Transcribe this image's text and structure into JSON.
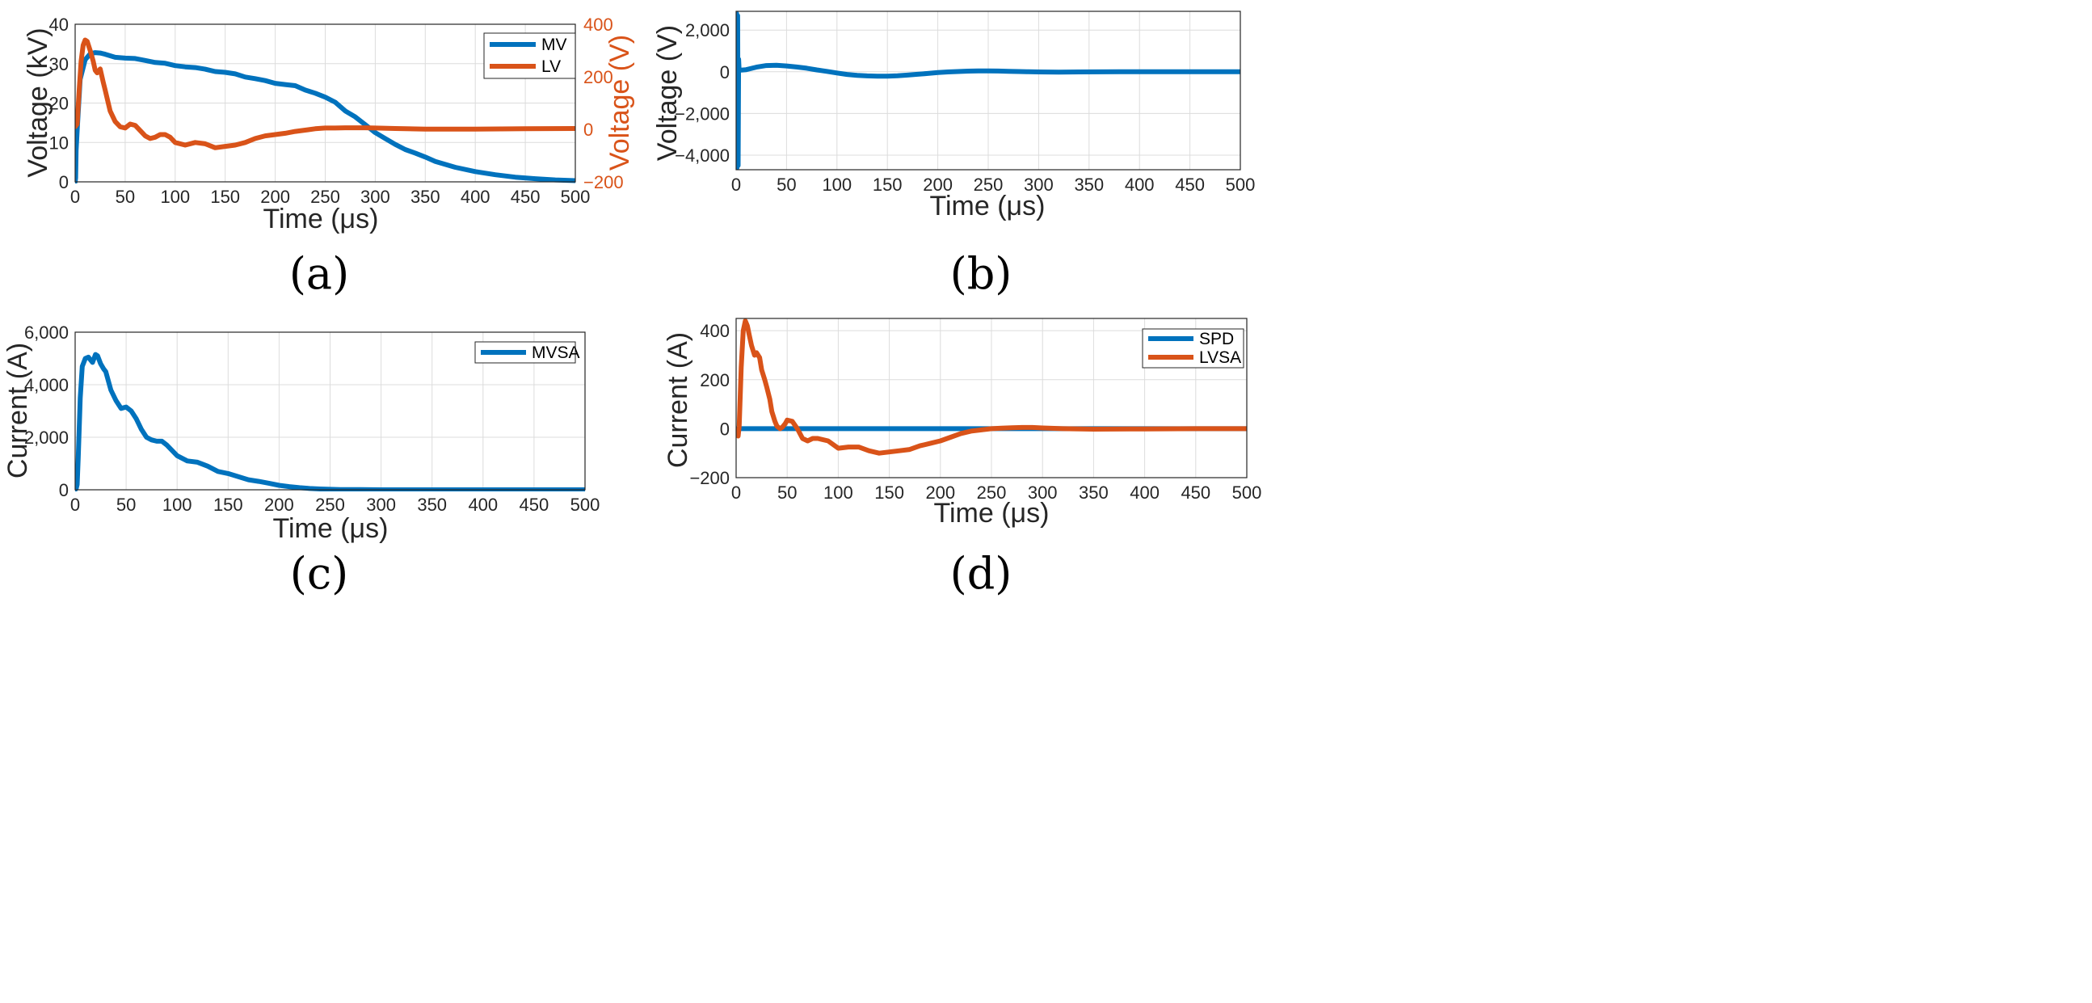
{
  "colors": {
    "blue": "#0072BD",
    "orange": "#D95319",
    "grid": "#dcdcdc",
    "axis": "#262626",
    "right_axis": "#D95319"
  },
  "chart_data": [
    {
      "panel": "(a)",
      "type": "line",
      "xlabel": "Time (μs)",
      "ylabel": "Voltage (kV)",
      "y2label": "Voltage (V)",
      "xlim": [
        0,
        500
      ],
      "ylim": [
        0,
        40
      ],
      "y2lim": [
        -200,
        400
      ],
      "xticks": [
        0,
        50,
        100,
        150,
        200,
        250,
        300,
        350,
        400,
        450,
        500
      ],
      "yticks": [
        0,
        10,
        20,
        30,
        40
      ],
      "y2ticks": [
        -200,
        0,
        200,
        400
      ],
      "grid": true,
      "legend": "top-right",
      "series": [
        {
          "name": "MV",
          "axis": "left",
          "color": "blue",
          "x": [
            0,
            0.5,
            1,
            2,
            5,
            10,
            15,
            20,
            25,
            30,
            35,
            40,
            45,
            50,
            60,
            70,
            80,
            90,
            100,
            110,
            120,
            130,
            140,
            150,
            160,
            170,
            180,
            190,
            200,
            210,
            220,
            230,
            240,
            250,
            260,
            270,
            280,
            290,
            300,
            310,
            320,
            330,
            340,
            350,
            360,
            380,
            400,
            420,
            440,
            460,
            480,
            500
          ],
          "y": [
            0,
            1,
            8,
            13,
            26,
            31,
            32.5,
            32.8,
            32.7,
            32.4,
            32,
            31.6,
            31.5,
            31.4,
            31.3,
            30.8,
            30.3,
            30.1,
            29.5,
            29.2,
            29,
            28.6,
            28,
            27.8,
            27.4,
            26.6,
            26.2,
            25.7,
            25,
            24.7,
            24.4,
            23.3,
            22.5,
            21.5,
            20.2,
            18,
            16.5,
            14.5,
            12.5,
            11,
            9.5,
            8.2,
            7.3,
            6.3,
            5.2,
            3.7,
            2.6,
            1.8,
            1.2,
            0.8,
            0.5,
            0.3
          ]
        },
        {
          "name": "LV",
          "axis": "right",
          "color": "orange",
          "x": [
            0,
            2,
            4,
            6,
            8,
            10,
            12,
            15,
            18,
            20,
            22,
            25,
            28,
            30,
            35,
            40,
            45,
            50,
            55,
            60,
            65,
            70,
            75,
            80,
            85,
            90,
            95,
            100,
            110,
            120,
            130,
            140,
            150,
            160,
            170,
            180,
            190,
            200,
            210,
            220,
            230,
            240,
            250,
            260,
            270,
            280,
            290,
            300,
            320,
            350,
            400,
            450,
            500
          ],
          "y": [
            10,
            20,
            150,
            260,
            320,
            340,
            335,
            300,
            260,
            225,
            215,
            230,
            180,
            150,
            70,
            30,
            10,
            5,
            20,
            15,
            -5,
            -25,
            -35,
            -30,
            -20,
            -20,
            -30,
            -50,
            -60,
            -50,
            -55,
            -70,
            -65,
            -60,
            -50,
            -35,
            -25,
            -20,
            -15,
            -8,
            -3,
            2,
            5,
            5,
            6,
            6,
            6,
            5,
            3,
            1,
            1,
            2,
            3
          ]
        }
      ]
    },
    {
      "panel": "(b)",
      "type": "line",
      "xlabel": "Time (μs)",
      "ylabel": "Voltage (V)",
      "xlim": [
        0,
        500
      ],
      "ylim": [
        -4700,
        2900
      ],
      "xticks": [
        0,
        50,
        100,
        150,
        200,
        250,
        300,
        350,
        400,
        450,
        500
      ],
      "yticks": [
        -4000,
        -2000,
        0,
        2000
      ],
      "ytick_labels": [
        "−4,000",
        "−2,000",
        "0",
        "2,000"
      ],
      "grid": true,
      "series": [
        {
          "color": "blue",
          "x": [
            0,
            0.5,
            1,
            1.5,
            2,
            2.5,
            3,
            5,
            10,
            20,
            30,
            40,
            50,
            60,
            70,
            80,
            90,
            100,
            110,
            120,
            130,
            140,
            150,
            160,
            170,
            180,
            190,
            200,
            210,
            220,
            230,
            240,
            250,
            260,
            270,
            280,
            290,
            300,
            320,
            340,
            360,
            380,
            400,
            450,
            500
          ],
          "y": [
            0,
            2800,
            -4600,
            2700,
            -4500,
            600,
            80,
            80,
            100,
            220,
            300,
            310,
            280,
            230,
            170,
            90,
            20,
            -60,
            -130,
            -170,
            -200,
            -215,
            -210,
            -190,
            -160,
            -120,
            -80,
            -40,
            -10,
            10,
            30,
            40,
            40,
            35,
            20,
            10,
            0,
            -10,
            -15,
            -10,
            -5,
            0,
            0,
            0,
            0
          ]
        }
      ]
    },
    {
      "panel": "(c)",
      "type": "line",
      "xlabel": "Time (μs)",
      "ylabel": "Current (A)",
      "xlim": [
        0,
        500
      ],
      "ylim": [
        0,
        6000
      ],
      "xticks": [
        0,
        50,
        100,
        150,
        200,
        250,
        300,
        350,
        400,
        450,
        500
      ],
      "yticks": [
        0,
        2000,
        4000,
        6000
      ],
      "ytick_labels": [
        "0",
        "2,000",
        "4,000",
        "6,000"
      ],
      "grid": true,
      "legend": "top-right",
      "series": [
        {
          "name": "MVSA",
          "color": "blue",
          "x": [
            0,
            1,
            2,
            3,
            5,
            7,
            10,
            13,
            15,
            17,
            20,
            22,
            25,
            28,
            30,
            35,
            40,
            45,
            50,
            55,
            60,
            65,
            70,
            75,
            80,
            85,
            90,
            95,
            100,
            110,
            120,
            130,
            140,
            150,
            160,
            170,
            180,
            190,
            200,
            210,
            220,
            230,
            240,
            250,
            260,
            280,
            300,
            350,
            400,
            450,
            500
          ],
          "y": [
            0,
            50,
            200,
            1200,
            3500,
            4700,
            5000,
            5050,
            4950,
            4850,
            5150,
            5100,
            4800,
            4600,
            4500,
            3800,
            3400,
            3100,
            3150,
            3000,
            2700,
            2300,
            2000,
            1900,
            1850,
            1850,
            1700,
            1500,
            1300,
            1100,
            1050,
            900,
            700,
            620,
            500,
            380,
            320,
            250,
            170,
            120,
            80,
            50,
            30,
            20,
            10,
            5,
            0,
            0,
            0,
            0,
            0
          ]
        }
      ]
    },
    {
      "panel": "(d)",
      "type": "line",
      "xlabel": "Time (μs)",
      "ylabel": "Current (A)",
      "xlim": [
        0,
        500
      ],
      "ylim": [
        -200,
        450
      ],
      "xticks": [
        0,
        50,
        100,
        150,
        200,
        250,
        300,
        350,
        400,
        450,
        500
      ],
      "yticks": [
        -200,
        0,
        200,
        400
      ],
      "ytick_labels": [
        "−200",
        "0",
        "200",
        "400"
      ],
      "grid": true,
      "legend": "top-right",
      "series": [
        {
          "name": "SPD",
          "color": "blue",
          "x": [
            0,
            500
          ],
          "y": [
            0,
            0
          ]
        },
        {
          "name": "LVSA",
          "color": "orange",
          "x": [
            0,
            2,
            3,
            5,
            7,
            9,
            11,
            13,
            15,
            18,
            20,
            23,
            25,
            28,
            30,
            33,
            35,
            38,
            40,
            43,
            45,
            48,
            50,
            55,
            60,
            65,
            70,
            75,
            80,
            90,
            100,
            110,
            120,
            130,
            140,
            150,
            160,
            170,
            180,
            190,
            200,
            210,
            220,
            230,
            240,
            250,
            260,
            270,
            280,
            290,
            300,
            320,
            350,
            400,
            450,
            500
          ],
          "y": [
            -20,
            -30,
            10,
            250,
            400,
            440,
            420,
            380,
            340,
            300,
            310,
            290,
            240,
            200,
            170,
            120,
            70,
            30,
            10,
            0,
            5,
            20,
            35,
            30,
            0,
            -40,
            -50,
            -40,
            -40,
            -50,
            -80,
            -75,
            -75,
            -90,
            -100,
            -95,
            -90,
            -85,
            -70,
            -60,
            -50,
            -35,
            -20,
            -10,
            -5,
            0,
            2,
            4,
            5,
            5,
            3,
            0,
            -2,
            -1,
            0,
            0
          ]
        }
      ]
    }
  ],
  "panels": [
    {
      "label": "(a)",
      "legend": [
        "MV",
        "LV"
      ]
    },
    {
      "label": "(b)"
    },
    {
      "label": "(c)",
      "legend": [
        "MVSA"
      ]
    },
    {
      "label": "(d)",
      "legend": [
        "SPD",
        "LVSA"
      ]
    }
  ]
}
